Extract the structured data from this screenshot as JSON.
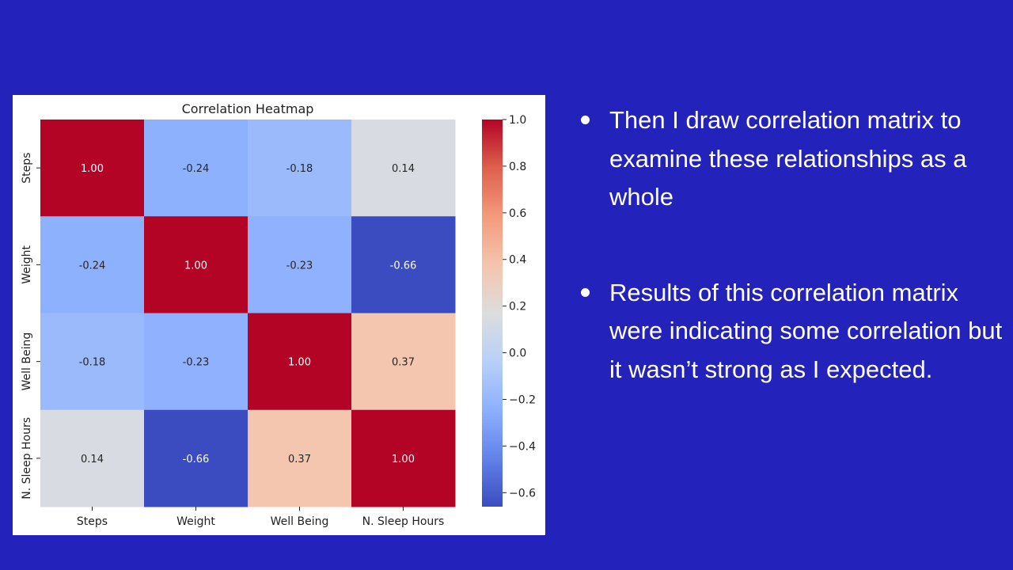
{
  "slide": {
    "bullets": [
      "Then I draw correlation matrix to examine these relationships as a whole",
      "Results of this correlation matrix were indicating some correlation but it wasn’t strong as I expected."
    ],
    "colors": {
      "background": "#2323bb",
      "text": "#ffffff",
      "panel": "#ffffff"
    }
  },
  "chart_data": {
    "type": "heatmap",
    "title": "Correlation Heatmap",
    "x_categories": [
      "Steps",
      "Weight",
      "Well Being",
      "N. Sleep Hours"
    ],
    "y_categories": [
      "Steps",
      "Weight",
      "Well Being",
      "N. Sleep Hours"
    ],
    "values": [
      [
        1.0,
        -0.24,
        -0.18,
        0.14
      ],
      [
        -0.24,
        1.0,
        -0.23,
        -0.66
      ],
      [
        -0.18,
        -0.23,
        1.0,
        0.37
      ],
      [
        0.14,
        -0.66,
        0.37,
        1.0
      ]
    ],
    "colormap": "coolwarm",
    "colorbar": {
      "range": [
        -0.66,
        1.0
      ],
      "ticks": [
        1.0,
        0.8,
        0.6,
        0.4,
        0.2,
        0.0,
        -0.2,
        -0.4,
        -0.6
      ],
      "tick_labels": [
        "1.0",
        "0.8",
        "0.6",
        "0.4",
        "0.2",
        "0.0",
        "−0.2",
        "−0.4",
        "−0.6"
      ]
    }
  }
}
